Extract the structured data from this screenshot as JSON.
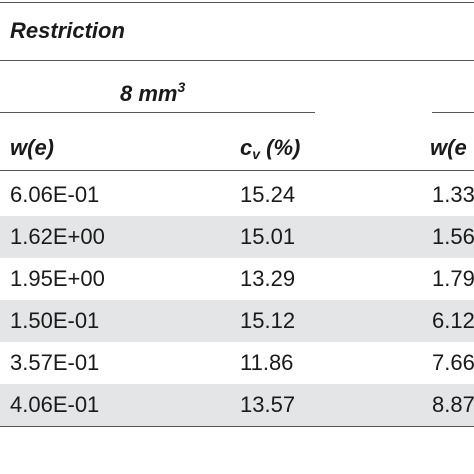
{
  "table": {
    "section": "Restriction",
    "group": {
      "text": "8 mm",
      "sup": "3"
    },
    "columns": [
      {
        "text": "w(e)"
      },
      {
        "base": "c",
        "sub": "v",
        "rest": " (%)"
      },
      {
        "text": "w(e"
      }
    ],
    "rows": [
      [
        "6.06E-01",
        "15.24",
        "1.33"
      ],
      [
        "1.62E+00",
        "15.01",
        "1.56"
      ],
      [
        "1.95E+00",
        "13.29",
        "1.79"
      ],
      [
        "1.50E-01",
        "15.12",
        "6.12"
      ],
      [
        "3.57E-01",
        "11.86",
        "7.66"
      ],
      [
        "4.06E-01",
        "13.57",
        "8.87"
      ]
    ]
  }
}
